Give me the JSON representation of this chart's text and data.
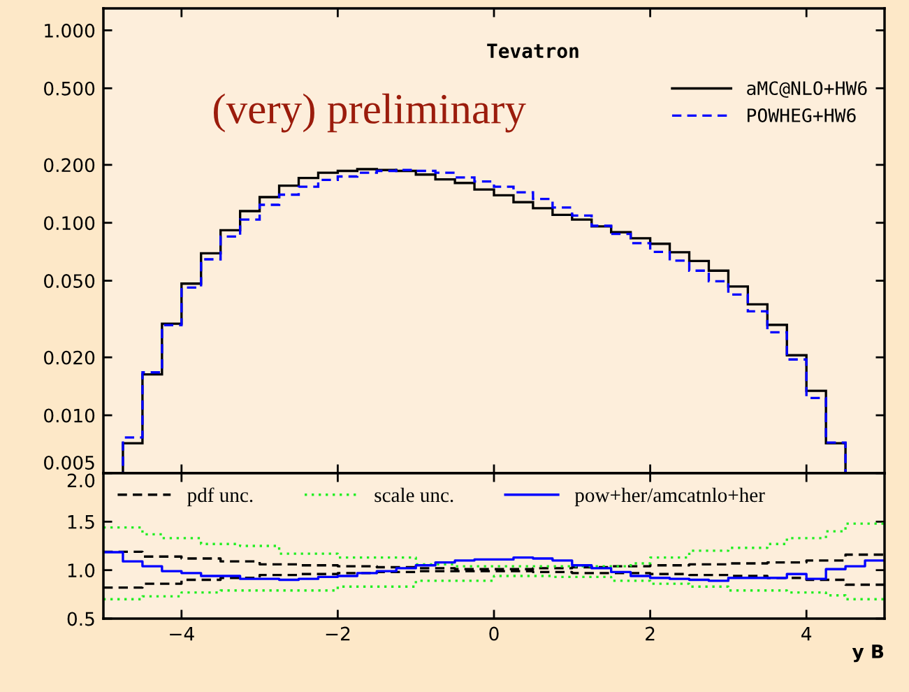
{
  "chart_data": [
    {
      "type": "histogram",
      "annotations": [
        "Tevatron",
        "(very) preliminary"
      ],
      "bins": [
        -4.75,
        -4.5,
        -4.25,
        -4.0,
        -3.75,
        -3.5,
        -3.25,
        -3.0,
        -2.75,
        -2.5,
        -2.25,
        -2.0,
        -1.75,
        -1.5,
        -1.25,
        -1.0,
        -0.75,
        -0.5,
        -0.25,
        0.0,
        0.25,
        0.5,
        0.75,
        1.0,
        1.25,
        1.5,
        1.75,
        2.0,
        2.25,
        2.5,
        2.75,
        3.0,
        3.25,
        3.5,
        3.75,
        4.0,
        4.25,
        4.5
      ],
      "series": [
        {
          "name": "aMC@NLO+HW6",
          "color": "#000000",
          "line_style": "solid",
          "values": [
            0.00716,
            0.0163,
            0.0299,
            0.0483,
            0.0694,
            0.0915,
            0.115,
            0.136,
            0.156,
            0.171,
            0.182,
            0.186,
            0.19,
            0.188,
            0.186,
            0.178,
            0.168,
            0.161,
            0.149,
            0.139,
            0.128,
            0.119,
            0.11,
            0.104,
            0.0958,
            0.0893,
            0.0831,
            0.0778,
            0.0703,
            0.0633,
            0.0564,
            0.0467,
            0.0377,
            0.0295,
            0.0205,
            0.0134,
            0.00716
          ]
        },
        {
          "name": "POWHEG+HW6",
          "color": "#0000ff",
          "line_style": "dashed",
          "values": [
            0.00767,
            0.0167,
            0.0294,
            0.0461,
            0.0646,
            0.0849,
            0.104,
            0.124,
            0.14,
            0.154,
            0.167,
            0.174,
            0.182,
            0.186,
            0.188,
            0.186,
            0.182,
            0.172,
            0.164,
            0.154,
            0.144,
            0.133,
            0.12,
            0.109,
            0.0965,
            0.0876,
            0.0784,
            0.0706,
            0.0636,
            0.0564,
            0.0497,
            0.0424,
            0.0347,
            0.027,
            0.0195,
            0.0123,
            0.00722
          ]
        }
      ],
      "xlim": [
        -5,
        5
      ],
      "xticks": [
        -4,
        -2,
        0,
        2,
        4
      ],
      "tick_labels": "y",
      "log": "y",
      "ylim": [
        0.005,
        1.3
      ],
      "yticks": [
        {
          "value": 0.005,
          "label": "0.005"
        },
        {
          "value": 0.01,
          "label": "0.010"
        },
        {
          "value": 0.02,
          "label": "0.020"
        },
        {
          "value": 0.05,
          "label": "0.050"
        },
        {
          "value": 0.1,
          "label": "0.100"
        },
        {
          "value": 0.2,
          "label": "0.200"
        },
        {
          "value": 0.5,
          "label": "0.500"
        },
        {
          "value": 1,
          "label": "1.000"
        }
      ],
      "legend": "top right"
    },
    {
      "type": "step",
      "xlabel": "y B",
      "series": [
        {
          "name": "pdf unc.",
          "color": "#000000",
          "line_style": "dashed",
          "x": [
            -5,
            -4.5,
            -4,
            -3.5,
            -3,
            -2.5,
            -2,
            -1.5,
            -1,
            -0.5,
            0,
            0.5,
            1,
            1.5,
            2,
            2.5,
            3,
            3.5,
            4,
            4.5,
            5
          ],
          "values": [
            1.19,
            1.14,
            1.12,
            1.09,
            1.06,
            1.05,
            1.04,
            1.03,
            1.02,
            1.01,
            1.01,
            1.02,
            1.03,
            1.04,
            1.05,
            1.06,
            1.07,
            1.08,
            1.1,
            1.16,
            1.16
          ]
        },
        {
          "color": "#000000",
          "line_style": "dashed",
          "x": [
            -5,
            -4.5,
            -4,
            -3.5,
            -3,
            -2.5,
            -2,
            -1.5,
            -1,
            -0.5,
            0,
            0.5,
            1,
            1.5,
            2,
            2.5,
            3,
            3.5,
            4,
            4.5,
            5
          ],
          "values": [
            0.82,
            0.86,
            0.9,
            0.92,
            0.95,
            0.96,
            0.97,
            0.98,
            0.99,
            0.99,
            0.99,
            0.98,
            0.97,
            0.97,
            0.96,
            0.95,
            0.94,
            0.92,
            0.9,
            0.85,
            0.85
          ]
        },
        {
          "name": "scale unc.",
          "color": "#22ee22",
          "line_style": "dotted",
          "x": [
            -5,
            -4.5,
            -4.25,
            -3.75,
            -3.25,
            -2.75,
            -2,
            -1,
            -0.5,
            1.75,
            2,
            2.5,
            3,
            3.5,
            3.75,
            4.25,
            4.5,
            5
          ],
          "values": [
            1.44,
            1.37,
            1.33,
            1.27,
            1.25,
            1.17,
            1.13,
            1.06,
            1.04,
            1.07,
            1.13,
            1.2,
            1.23,
            1.27,
            1.33,
            1.4,
            1.48,
            1.48
          ]
        },
        {
          "color": "#22ee22",
          "line_style": "dotted",
          "x": [
            -5,
            -4.5,
            -4,
            -3.5,
            -2,
            -1,
            0,
            0.75,
            1.5,
            2,
            2.5,
            3,
            3.75,
            4.25,
            4.5,
            5
          ],
          "values": [
            0.7,
            0.73,
            0.77,
            0.79,
            0.83,
            0.89,
            0.94,
            0.93,
            0.89,
            0.86,
            0.83,
            0.79,
            0.77,
            0.74,
            0.7,
            0.7
          ]
        },
        {
          "name": "pow+her/amcatnlo+her",
          "color": "#0000ff",
          "line_style": "solid",
          "x": [
            -5,
            -4.75,
            -4.5,
            -4.25,
            -4.0,
            -3.75,
            -3.5,
            -3.25,
            -3.0,
            -2.75,
            -2.5,
            -2.25,
            -2.0,
            -1.75,
            -1.5,
            -1.25,
            -1.0,
            -0.75,
            -0.5,
            -0.25,
            0.0,
            0.25,
            0.5,
            0.75,
            1.0,
            1.25,
            1.5,
            1.75,
            2.0,
            2.25,
            2.5,
            2.75,
            3.0,
            3.25,
            3.5,
            3.75,
            4.0,
            4.25,
            4.5,
            4.75,
            5
          ],
          "values": [
            1.185,
            1.09,
            1.04,
            0.99,
            0.97,
            0.94,
            0.94,
            0.91,
            0.91,
            0.9,
            0.91,
            0.93,
            0.94,
            0.97,
            0.99,
            1.02,
            1.05,
            1.08,
            1.1,
            1.11,
            1.11,
            1.13,
            1.12,
            1.1,
            1.05,
            1.02,
            0.98,
            0.94,
            0.92,
            0.91,
            0.9,
            0.89,
            0.92,
            0.92,
            0.92,
            0.96,
            0.91,
            1.01,
            1.04,
            1.1,
            1.1
          ]
        }
      ],
      "xlim": [
        -5,
        5
      ],
      "xticks": [
        {
          "value": -4,
          "label": "−4"
        },
        {
          "value": -2,
          "label": "−2"
        },
        0,
        2,
        4
      ],
      "ylim": [
        0.5,
        2.0
      ],
      "yticks": [
        {
          "value": 0.5,
          "label": "0.5"
        },
        {
          "value": 1.0,
          "label": "1.0"
        },
        {
          "value": 1.5,
          "label": "1.5"
        },
        {
          "value": 2.0,
          "label": "2.0"
        }
      ],
      "legend": "top left"
    }
  ]
}
